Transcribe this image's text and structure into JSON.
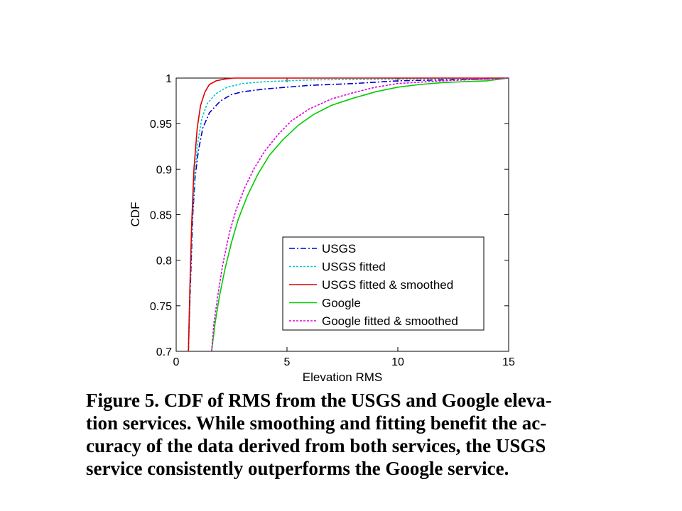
{
  "chart_data": {
    "type": "line",
    "xlabel": "Elevation RMS",
    "ylabel": "CDF",
    "xlim": [
      0,
      15
    ],
    "ylim": [
      0.7,
      1
    ],
    "xticks": [
      "0",
      "5",
      "10",
      "15"
    ],
    "yticks": [
      "0.7",
      "0.75",
      "0.8",
      "0.85",
      "0.9",
      "0.95",
      "1"
    ],
    "grid": false,
    "legend_position": "bottom-right",
    "series": [
      {
        "name": "USGS",
        "color": "#0000cc",
        "style": "dash-dot",
        "points": [
          [
            0.55,
            0.7
          ],
          [
            0.6,
            0.74
          ],
          [
            0.68,
            0.8
          ],
          [
            0.75,
            0.85
          ],
          [
            0.85,
            0.89
          ],
          [
            1.0,
            0.92
          ],
          [
            1.2,
            0.945
          ],
          [
            1.5,
            0.962
          ],
          [
            2.0,
            0.975
          ],
          [
            2.5,
            0.982
          ],
          [
            3.0,
            0.985
          ],
          [
            4.0,
            0.988
          ],
          [
            5.0,
            0.99
          ],
          [
            6.0,
            0.992
          ],
          [
            8.0,
            0.994
          ],
          [
            10.0,
            0.997
          ],
          [
            12.0,
            0.998
          ],
          [
            14.0,
            0.999
          ],
          [
            15.0,
            1.0
          ]
        ]
      },
      {
        "name": "USGS fitted",
        "color": "#00cccc",
        "style": "dotted",
        "points": [
          [
            0.55,
            0.7
          ],
          [
            0.62,
            0.76
          ],
          [
            0.7,
            0.83
          ],
          [
            0.8,
            0.88
          ],
          [
            0.95,
            0.925
          ],
          [
            1.15,
            0.955
          ],
          [
            1.4,
            0.972
          ],
          [
            1.8,
            0.983
          ],
          [
            2.3,
            0.99
          ],
          [
            3.0,
            0.994
          ],
          [
            4.0,
            0.996
          ],
          [
            6.0,
            0.998
          ],
          [
            10.0,
            0.999
          ],
          [
            15.0,
            1.0
          ]
        ]
      },
      {
        "name": "USGS fitted & smoothed",
        "color": "#dd0000",
        "style": "solid",
        "points": [
          [
            0.55,
            0.7
          ],
          [
            0.62,
            0.77
          ],
          [
            0.7,
            0.84
          ],
          [
            0.8,
            0.9
          ],
          [
            0.95,
            0.945
          ],
          [
            1.1,
            0.97
          ],
          [
            1.3,
            0.985
          ],
          [
            1.5,
            0.993
          ],
          [
            1.8,
            0.997
          ],
          [
            2.2,
            0.999
          ],
          [
            2.6,
            1.0
          ],
          [
            15.0,
            1.0
          ]
        ]
      },
      {
        "name": "Google",
        "color": "#00cc00",
        "style": "solid",
        "points": [
          [
            1.6,
            0.7
          ],
          [
            1.75,
            0.73
          ],
          [
            1.95,
            0.76
          ],
          [
            2.2,
            0.79
          ],
          [
            2.5,
            0.82
          ],
          [
            2.8,
            0.845
          ],
          [
            3.2,
            0.87
          ],
          [
            3.7,
            0.895
          ],
          [
            4.2,
            0.915
          ],
          [
            4.8,
            0.932
          ],
          [
            5.5,
            0.948
          ],
          [
            6.2,
            0.96
          ],
          [
            7.0,
            0.97
          ],
          [
            8.0,
            0.978
          ],
          [
            9.0,
            0.985
          ],
          [
            10.0,
            0.99
          ],
          [
            11.0,
            0.993
          ],
          [
            12.0,
            0.995
          ],
          [
            13.0,
            0.996
          ],
          [
            14.0,
            0.997
          ],
          [
            15.0,
            1.0
          ]
        ]
      },
      {
        "name": "Google fitted & smoothed",
        "color": "#dd00dd",
        "style": "dotted",
        "points": [
          [
            1.6,
            0.7
          ],
          [
            1.7,
            0.73
          ],
          [
            1.9,
            0.765
          ],
          [
            2.1,
            0.795
          ],
          [
            2.4,
            0.83
          ],
          [
            2.7,
            0.855
          ],
          [
            3.1,
            0.88
          ],
          [
            3.5,
            0.9
          ],
          [
            4.0,
            0.92
          ],
          [
            4.6,
            0.938
          ],
          [
            5.2,
            0.953
          ],
          [
            6.0,
            0.966
          ],
          [
            7.0,
            0.977
          ],
          [
            8.0,
            0.984
          ],
          [
            9.0,
            0.99
          ],
          [
            10.0,
            0.994
          ],
          [
            12.0,
            0.997
          ],
          [
            14.0,
            0.999
          ],
          [
            15.0,
            1.0
          ]
        ]
      }
    ]
  },
  "caption": {
    "lines": [
      "Figure 5.  CDF of RMS from the USGS and Google eleva-",
      "tion services.  While smoothing and fitting benefit the ac-",
      "curacy of the data derived from both services, the USGS",
      "service consistently outperforms the Google service."
    ]
  }
}
